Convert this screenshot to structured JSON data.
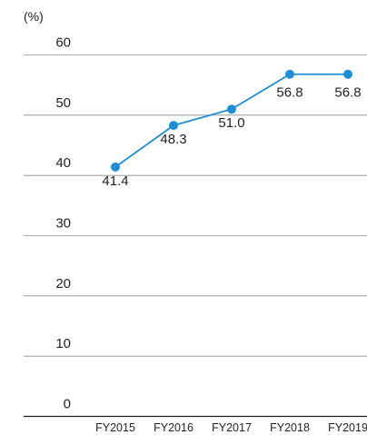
{
  "chart_data": {
    "type": "line",
    "unit_label": "(%)",
    "categories": [
      "FY2015",
      "FY2016",
      "FY2017",
      "FY2018",
      "FY2019"
    ],
    "values": [
      41.4,
      48.3,
      51.0,
      56.8,
      56.8
    ],
    "data_labels": [
      "41.4",
      "48.3",
      "51.0",
      "56.8",
      "56.8"
    ],
    "y_ticks": [
      0,
      10,
      20,
      30,
      40,
      50,
      60
    ],
    "ylim": [
      0,
      60
    ],
    "grid": true,
    "line_color": "#1e8fd6",
    "grid_color": "#8c8c8c"
  }
}
